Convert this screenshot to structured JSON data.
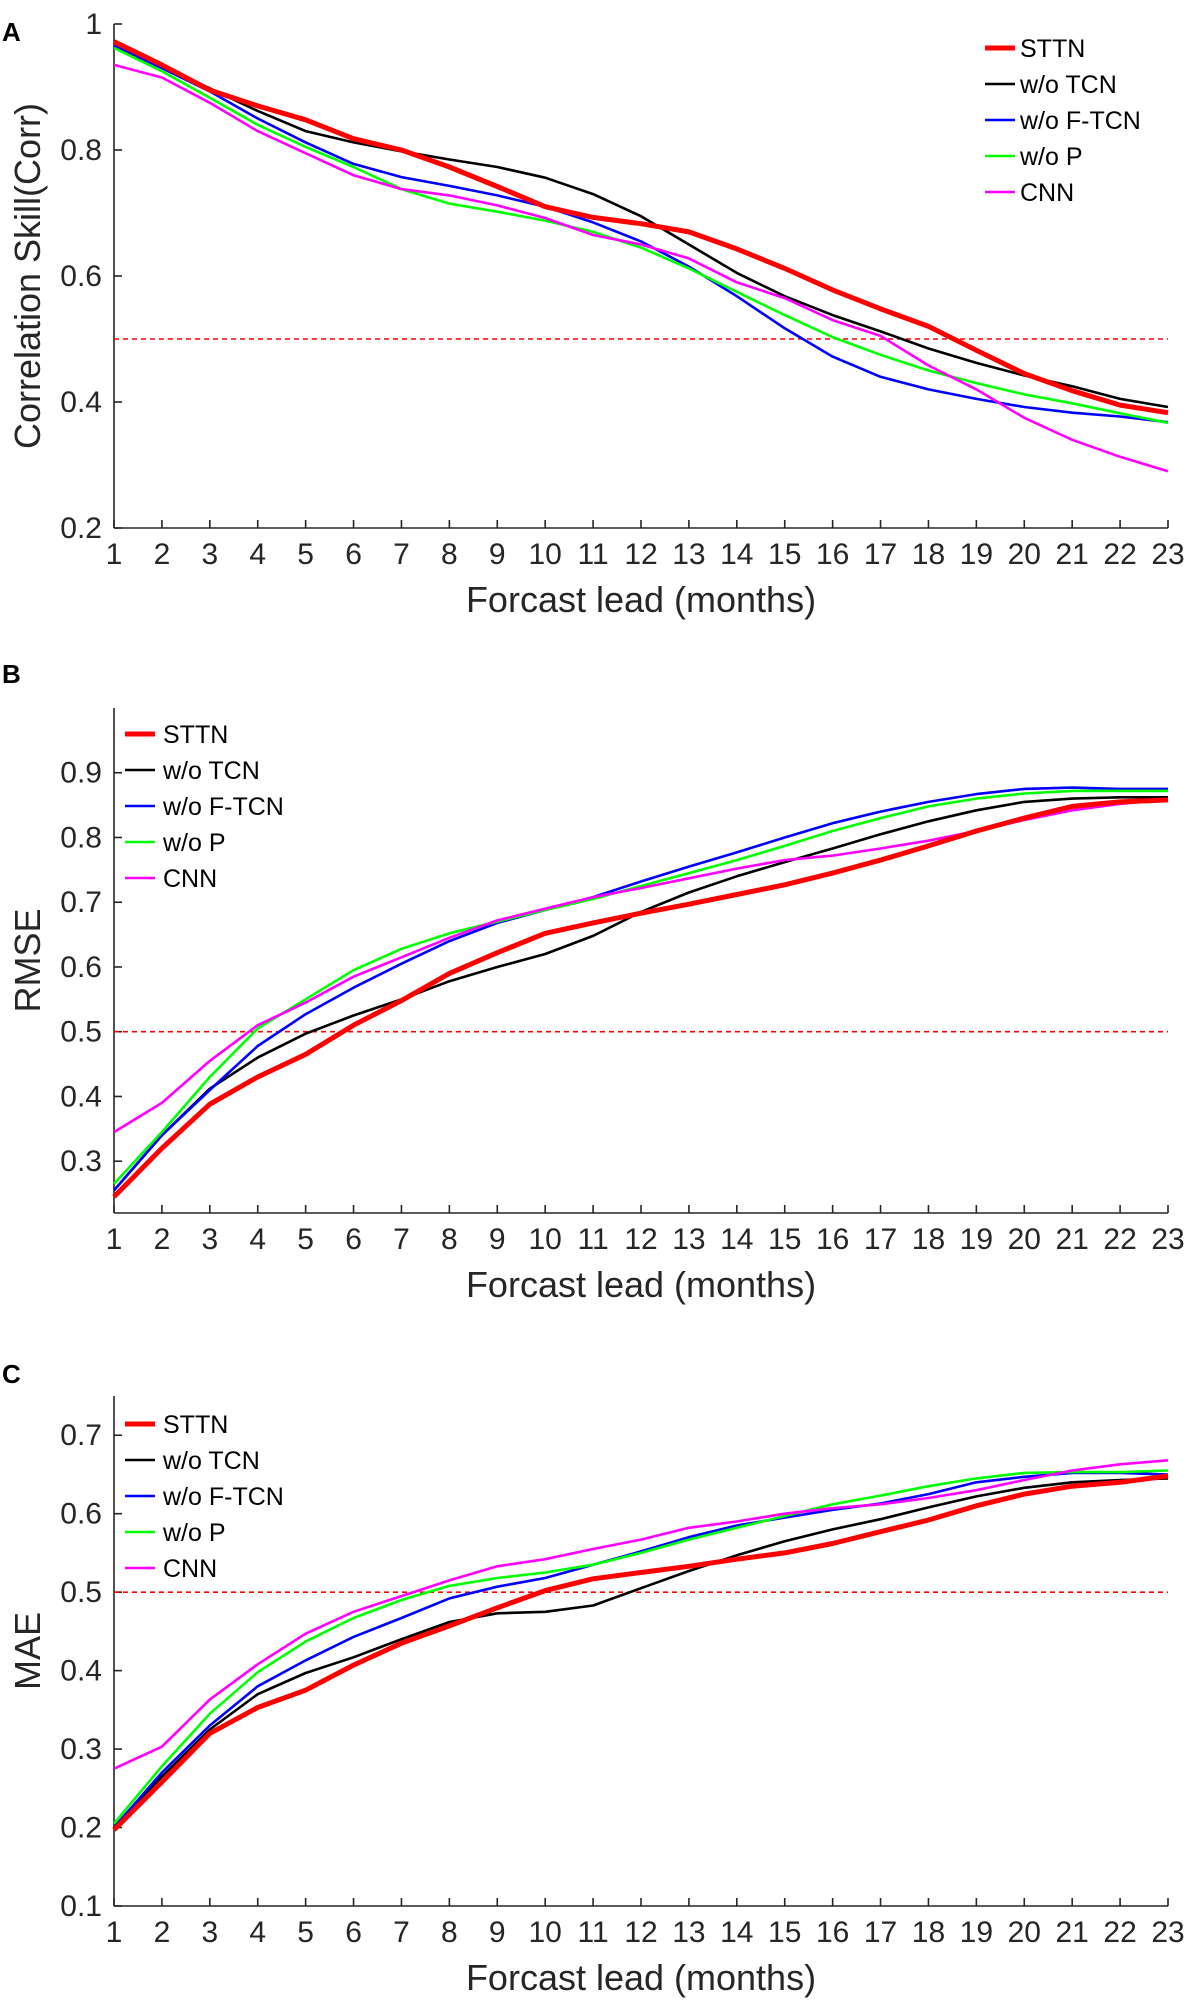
{
  "chart_data": [
    {
      "panel": "A",
      "type": "line",
      "title": "",
      "xlabel": "Forcast lead (months)",
      "ylabel": "Correlation Skill(Corr)",
      "x": [
        1,
        2,
        3,
        4,
        5,
        6,
        7,
        8,
        9,
        10,
        11,
        12,
        13,
        14,
        15,
        16,
        17,
        18,
        19,
        20,
        21,
        22,
        23
      ],
      "xlim": [
        1,
        23
      ],
      "ylim": [
        0.2,
        1.0
      ],
      "yticks": [
        "0.2",
        "0.4",
        "0.6",
        "0.8",
        "1"
      ],
      "reference_line": 0.5,
      "legend_location": "top-right",
      "series": [
        {
          "name": "STTN",
          "color": "#ff0000",
          "values": [
            0.972,
            0.935,
            0.895,
            0.87,
            0.848,
            0.818,
            0.8,
            0.773,
            0.742,
            0.71,
            0.693,
            0.683,
            0.67,
            0.643,
            0.612,
            0.578,
            0.548,
            0.52,
            0.482,
            0.445,
            0.418,
            0.395,
            0.383
          ]
        },
        {
          "name": "w/o TCN",
          "color": "#000000",
          "values": [
            0.965,
            0.932,
            0.898,
            0.862,
            0.83,
            0.812,
            0.798,
            0.785,
            0.773,
            0.756,
            0.73,
            0.695,
            0.65,
            0.605,
            0.568,
            0.538,
            0.512,
            0.485,
            0.462,
            0.442,
            0.425,
            0.405,
            0.392
          ]
        },
        {
          "name": "w/o F-TCN",
          "color": "#0000ff",
          "values": [
            0.965,
            0.93,
            0.893,
            0.85,
            0.812,
            0.778,
            0.757,
            0.743,
            0.728,
            0.71,
            0.685,
            0.655,
            0.615,
            0.568,
            0.517,
            0.472,
            0.44,
            0.42,
            0.405,
            0.392,
            0.383,
            0.377,
            0.368
          ]
        },
        {
          "name": "w/o P",
          "color": "#00ff00",
          "values": [
            0.962,
            0.925,
            0.883,
            0.84,
            0.805,
            0.773,
            0.738,
            0.715,
            0.702,
            0.688,
            0.67,
            0.645,
            0.612,
            0.575,
            0.538,
            0.503,
            0.475,
            0.45,
            0.43,
            0.412,
            0.398,
            0.382,
            0.367
          ]
        },
        {
          "name": "CNN",
          "color": "#ff00ff",
          "values": [
            0.935,
            0.915,
            0.875,
            0.83,
            0.795,
            0.76,
            0.738,
            0.728,
            0.712,
            0.692,
            0.665,
            0.65,
            0.628,
            0.59,
            0.565,
            0.53,
            0.505,
            0.458,
            0.42,
            0.375,
            0.34,
            0.313,
            0.29
          ]
        }
      ]
    },
    {
      "panel": "B",
      "type": "line",
      "title": "",
      "xlabel": "Forcast lead (months)",
      "ylabel": "RMSE",
      "x": [
        1,
        2,
        3,
        4,
        5,
        6,
        7,
        8,
        9,
        10,
        11,
        12,
        13,
        14,
        15,
        16,
        17,
        18,
        19,
        20,
        21,
        22,
        23
      ],
      "xlim": [
        1,
        23
      ],
      "ylim": [
        0.22,
        1.0
      ],
      "yticks": [
        "0.3",
        "0.4",
        "0.5",
        "0.6",
        "0.7",
        "0.8",
        "0.9"
      ],
      "reference_line": 0.5,
      "legend_location": "top-left",
      "series": [
        {
          "name": "STTN",
          "color": "#ff0000",
          "values": [
            0.245,
            0.32,
            0.388,
            0.43,
            0.465,
            0.51,
            0.548,
            0.59,
            0.622,
            0.652,
            0.668,
            0.683,
            0.697,
            0.712,
            0.727,
            0.745,
            0.765,
            0.787,
            0.81,
            0.83,
            0.848,
            0.855,
            0.858
          ]
        },
        {
          "name": "w/o TCN",
          "color": "#000000",
          "values": [
            0.255,
            0.34,
            0.412,
            0.46,
            0.497,
            0.525,
            0.55,
            0.578,
            0.6,
            0.62,
            0.648,
            0.685,
            0.715,
            0.74,
            0.762,
            0.783,
            0.805,
            0.825,
            0.842,
            0.855,
            0.86,
            0.862,
            0.862
          ]
        },
        {
          "name": "w/o F-TCN",
          "color": "#0000ff",
          "values": [
            0.255,
            0.34,
            0.41,
            0.478,
            0.527,
            0.568,
            0.605,
            0.64,
            0.668,
            0.688,
            0.708,
            0.732,
            0.755,
            0.777,
            0.8,
            0.822,
            0.84,
            0.855,
            0.867,
            0.875,
            0.877,
            0.875,
            0.875
          ]
        },
        {
          "name": "w/o P",
          "color": "#00ff00",
          "values": [
            0.265,
            0.345,
            0.43,
            0.505,
            0.55,
            0.595,
            0.628,
            0.652,
            0.67,
            0.688,
            0.705,
            0.725,
            0.745,
            0.765,
            0.787,
            0.81,
            0.83,
            0.848,
            0.86,
            0.868,
            0.872,
            0.872,
            0.872
          ]
        },
        {
          "name": "CNN",
          "color": "#ff00ff",
          "values": [
            0.345,
            0.39,
            0.455,
            0.51,
            0.545,
            0.585,
            0.615,
            0.645,
            0.672,
            0.69,
            0.708,
            0.722,
            0.737,
            0.752,
            0.765,
            0.772,
            0.783,
            0.795,
            0.81,
            0.827,
            0.842,
            0.852,
            0.858
          ]
        }
      ]
    },
    {
      "panel": "C",
      "type": "line",
      "title": "",
      "xlabel": "Forcast lead (months)",
      "ylabel": "MAE",
      "x": [
        1,
        2,
        3,
        4,
        5,
        6,
        7,
        8,
        9,
        10,
        11,
        12,
        13,
        14,
        15,
        16,
        17,
        18,
        19,
        20,
        21,
        22,
        23
      ],
      "xlim": [
        1,
        23
      ],
      "ylim": [
        0.1,
        0.75
      ],
      "yticks": [
        "0.1",
        "0.2",
        "0.3",
        "0.4",
        "0.5",
        "0.6",
        "0.7"
      ],
      "reference_line": 0.5,
      "legend_location": "top-left",
      "series": [
        {
          "name": "STTN",
          "color": "#ff0000",
          "values": [
            0.197,
            0.258,
            0.32,
            0.353,
            0.375,
            0.407,
            0.435,
            0.457,
            0.48,
            0.502,
            0.517,
            0.525,
            0.533,
            0.542,
            0.55,
            0.562,
            0.577,
            0.592,
            0.61,
            0.625,
            0.635,
            0.64,
            0.648
          ]
        },
        {
          "name": "w/o TCN",
          "color": "#000000",
          "values": [
            0.2,
            0.265,
            0.325,
            0.37,
            0.397,
            0.417,
            0.44,
            0.462,
            0.473,
            0.475,
            0.483,
            0.505,
            0.527,
            0.547,
            0.565,
            0.58,
            0.593,
            0.608,
            0.622,
            0.633,
            0.64,
            0.643,
            0.645
          ]
        },
        {
          "name": "w/o F-TCN",
          "color": "#0000ff",
          "values": [
            0.2,
            0.27,
            0.33,
            0.38,
            0.413,
            0.443,
            0.467,
            0.492,
            0.507,
            0.518,
            0.535,
            0.552,
            0.57,
            0.585,
            0.595,
            0.605,
            0.613,
            0.625,
            0.64,
            0.647,
            0.652,
            0.652,
            0.65
          ]
        },
        {
          "name": "w/o P",
          "color": "#00ff00",
          "values": [
            0.205,
            0.278,
            0.345,
            0.398,
            0.437,
            0.467,
            0.49,
            0.508,
            0.518,
            0.525,
            0.535,
            0.55,
            0.567,
            0.582,
            0.597,
            0.612,
            0.623,
            0.635,
            0.645,
            0.652,
            0.653,
            0.653,
            0.655
          ]
        },
        {
          "name": "CNN",
          "color": "#ff00ff",
          "values": [
            0.275,
            0.303,
            0.363,
            0.408,
            0.447,
            0.475,
            0.495,
            0.515,
            0.533,
            0.542,
            0.555,
            0.567,
            0.582,
            0.59,
            0.6,
            0.607,
            0.612,
            0.62,
            0.63,
            0.643,
            0.655,
            0.663,
            0.668
          ]
        }
      ]
    }
  ]
}
